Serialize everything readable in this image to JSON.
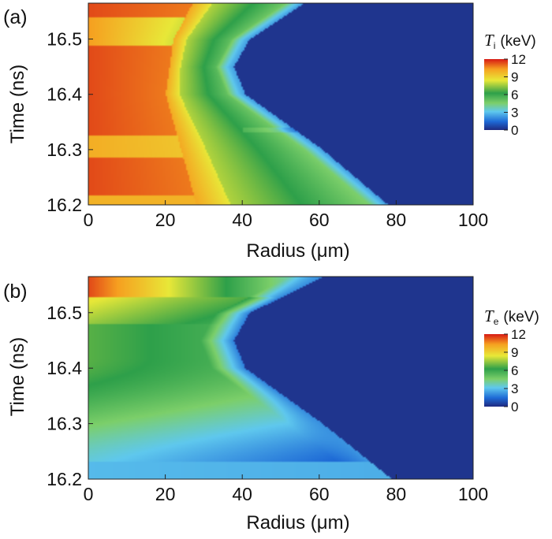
{
  "chart_data": [
    {
      "type": "heatmap",
      "panel_label": "(a)",
      "xlabel": "Radius (μm)",
      "ylabel": "Time (ns)",
      "xlim": [
        0,
        100
      ],
      "ylim": [
        16.2,
        16.565
      ],
      "x_ticks": [
        "0",
        "20",
        "40",
        "60",
        "80",
        "100"
      ],
      "x_tick_values": [
        0,
        20,
        40,
        60,
        80,
        100
      ],
      "y_ticks": [
        "16.2",
        "16.3",
        "16.4",
        "16.5"
      ],
      "y_tick_values": [
        16.2,
        16.3,
        16.4,
        16.5
      ],
      "colorbar": {
        "symbol": "T",
        "subscript": "i",
        "unit": "(keV)",
        "range": [
          0,
          12
        ],
        "ticks": [
          "12",
          "9",
          "6",
          "3",
          "0"
        ],
        "tick_values": [
          12,
          9,
          6,
          3,
          0
        ]
      },
      "quantity": "ion temperature",
      "front_radius": {
        "times": [
          16.2,
          16.3,
          16.35,
          16.4,
          16.45,
          16.5,
          16.565
        ],
        "radius": [
          77,
          60,
          50,
          40,
          37,
          41,
          55
        ]
      },
      "core_radius": {
        "times": [
          16.2,
          16.3,
          16.4,
          16.5,
          16.565
        ],
        "radius": [
          28,
          24,
          20,
          22,
          27
        ]
      }
    },
    {
      "type": "heatmap",
      "panel_label": "(b)",
      "xlabel": "Radius (μm)",
      "ylabel": "Time (ns)",
      "xlim": [
        0,
        100
      ],
      "ylim": [
        16.2,
        16.565
      ],
      "x_ticks": [
        "0",
        "20",
        "40",
        "60",
        "80",
        "100"
      ],
      "x_tick_values": [
        0,
        20,
        40,
        60,
        80,
        100
      ],
      "y_ticks": [
        "16.2",
        "16.3",
        "16.4",
        "16.5"
      ],
      "y_tick_values": [
        16.2,
        16.3,
        16.4,
        16.5
      ],
      "colorbar": {
        "symbol": "T",
        "subscript": "e",
        "unit": "(keV)",
        "range": [
          0,
          12
        ],
        "ticks": [
          "12",
          "9",
          "6",
          "3",
          "0"
        ],
        "tick_values": [
          12,
          9,
          6,
          3,
          0
        ]
      },
      "quantity": "electron temperature",
      "front_radius": {
        "times": [
          16.2,
          16.3,
          16.35,
          16.4,
          16.45,
          16.5,
          16.565
        ],
        "radius": [
          78,
          60,
          50,
          40,
          37,
          41,
          60
        ]
      },
      "core_radius": {
        "times": [
          16.2,
          16.3,
          16.4,
          16.5,
          16.565
        ],
        "radius": [
          20,
          22,
          24,
          22,
          18
        ]
      }
    }
  ],
  "colormap": [
    "#1f2a80",
    "#1e6ad6",
    "#5fc8ee",
    "#7ccf6a",
    "#2ea04a",
    "#e8e838",
    "#f6a020",
    "#d71a14"
  ]
}
